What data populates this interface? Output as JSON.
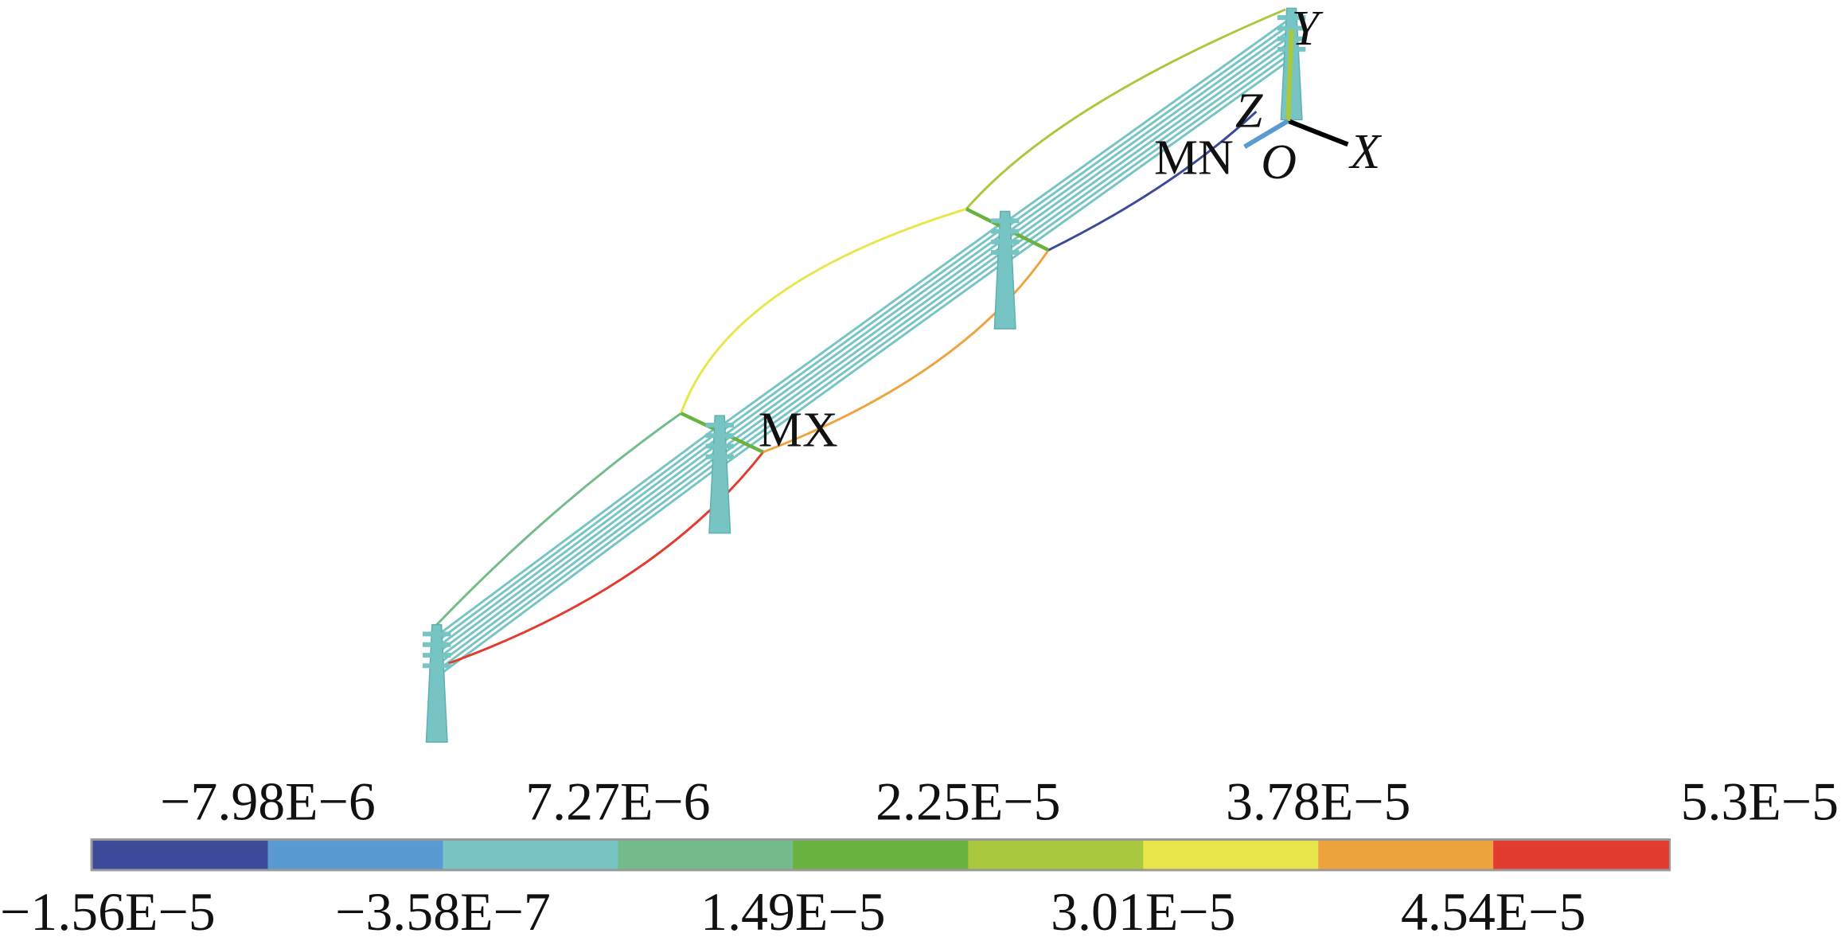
{
  "axes": {
    "x": "X",
    "y": "Y",
    "z": "Z",
    "origin": "O"
  },
  "markers": {
    "min": "MN",
    "max": "MX"
  },
  "colorbar": {
    "colors": [
      "#3c4a9a",
      "#5a9ad2",
      "#76c4c4",
      "#74bb8c",
      "#6ab23f",
      "#a9c83e",
      "#e8e64a",
      "#eea33e",
      "#e23b2f"
    ],
    "levels": [
      "−1.56E−5",
      "−7.98E−6",
      "−3.58E−7",
      "7.27E−6",
      "1.49E−5",
      "2.25E−5",
      "3.01E−5",
      "3.78E−5",
      "4.54E−5",
      "5.3E−5"
    ]
  }
}
